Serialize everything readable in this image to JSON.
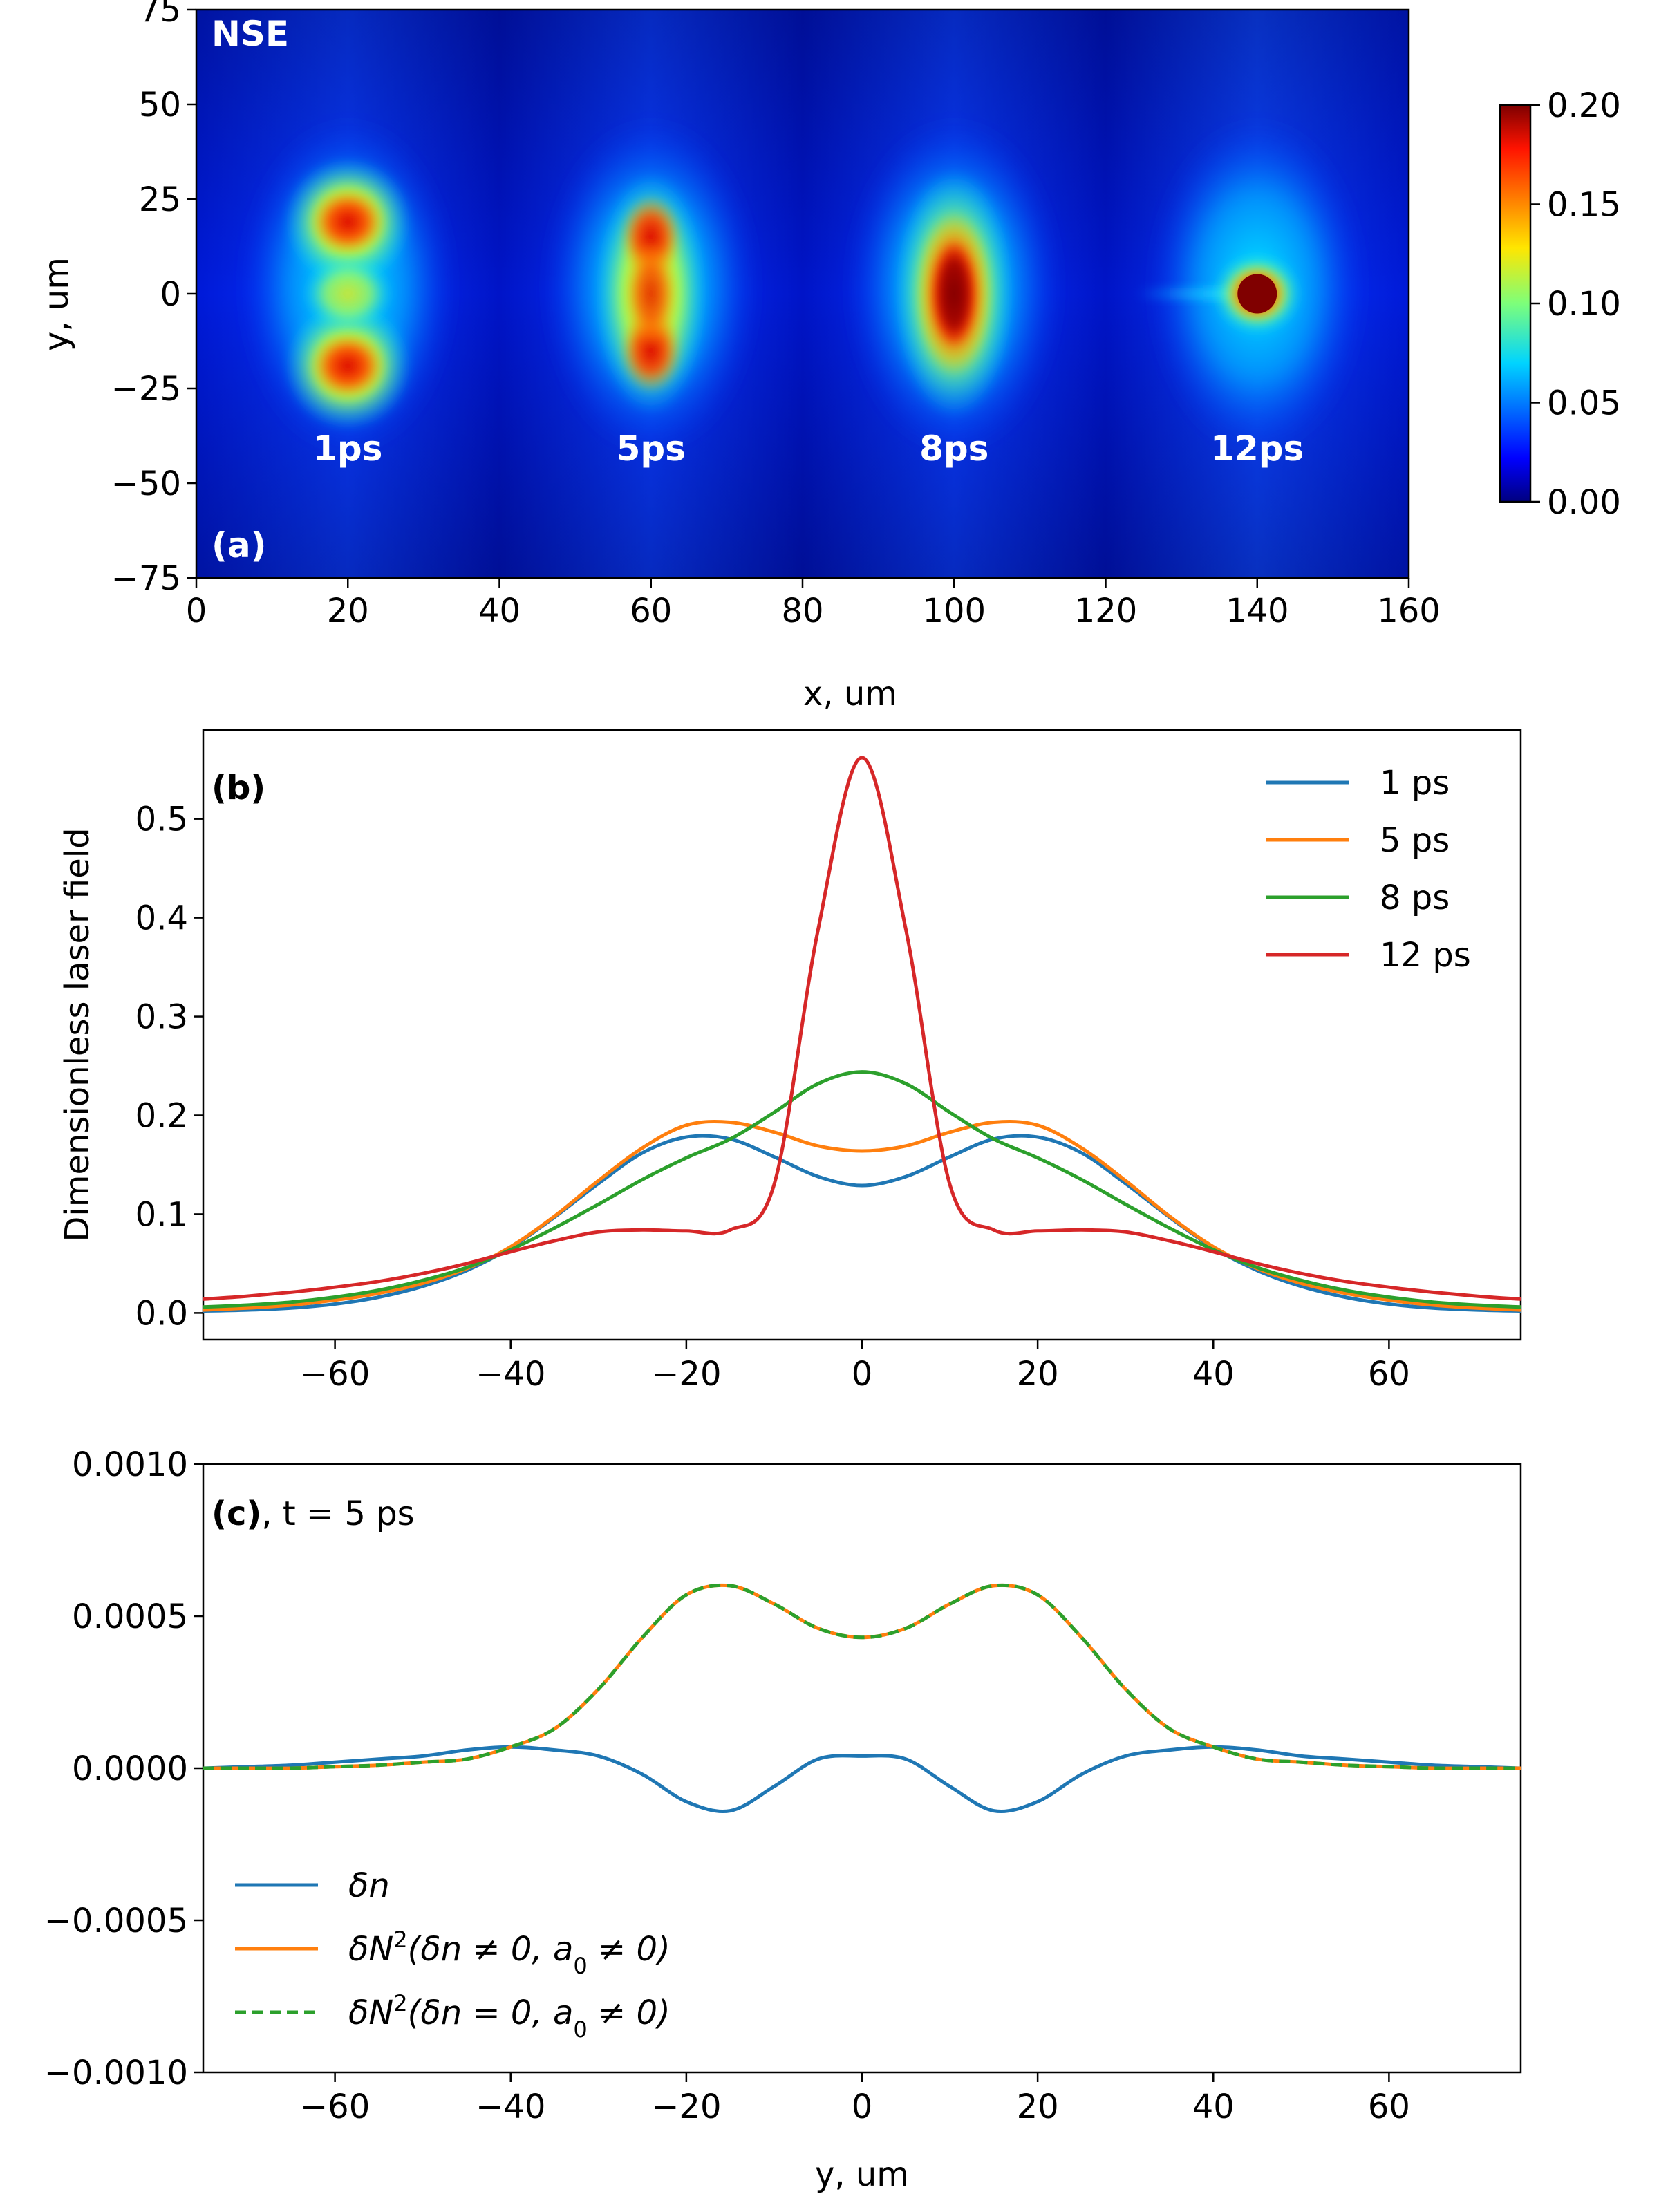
{
  "chart_data": [
    {
      "id": "a",
      "type": "heatmap",
      "panel_label": "(a)",
      "corner_label": "NSE",
      "xlabel": "x, um",
      "ylabel": "y, um",
      "xlim": [
        0,
        160
      ],
      "ylim": [
        -75,
        75
      ],
      "xticks": [
        0,
        20,
        40,
        60,
        80,
        100,
        120,
        140,
        160
      ],
      "yticks": [
        -75,
        -50,
        -25,
        0,
        25,
        50,
        75
      ],
      "colormap": "jet",
      "colorbar": {
        "range": [
          0.0,
          0.2
        ],
        "ticks": [
          0.0,
          0.05,
          0.1,
          0.15,
          0.2
        ],
        "tick_labels": [
          "0.00",
          "0.05",
          "0.10",
          "0.15",
          "0.20"
        ]
      },
      "pulses": [
        {
          "label": "1ps",
          "x_center": 20,
          "note": "double-lobed, lobes near y = ±19 um",
          "peak": 0.18
        },
        {
          "label": "5ps",
          "x_center": 60,
          "note": "elongated, lobes near y = ±15 um",
          "peak": 0.19
        },
        {
          "label": "8ps",
          "x_center": 100,
          "note": "single central maximum",
          "peak": 0.24
        },
        {
          "label": "12ps",
          "x_center": 140,
          "note": "compressed hot spot at y = 0 with faint tail toward smaller x",
          "peak": 0.56
        }
      ]
    },
    {
      "id": "b",
      "type": "line",
      "panel_label": "(b)",
      "xlabel": "",
      "ylabel": "Dimensionless laser field",
      "xlim": [
        -75,
        75
      ],
      "ylim": [
        -0.027,
        0.59
      ],
      "xticks": [
        -60,
        -40,
        -20,
        0,
        20,
        40,
        60
      ],
      "yticks": [
        0.0,
        0.1,
        0.2,
        0.3,
        0.4,
        0.5
      ],
      "ytick_labels": [
        "0.0",
        "0.1",
        "0.2",
        "0.3",
        "0.4",
        "0.5"
      ],
      "legend_position": "top-right",
      "x": [
        0,
        5,
        10,
        15,
        20,
        25,
        30,
        35,
        40,
        45,
        50,
        55,
        60,
        65,
        70,
        75
      ],
      "series": [
        {
          "name": "1 ps",
          "color": "#1f77b4",
          "values": [
            0.129,
            0.138,
            0.158,
            0.176,
            0.178,
            0.162,
            0.131,
            0.097,
            0.066,
            0.043,
            0.027,
            0.016,
            0.009,
            0.005,
            0.003,
            0.002
          ]
        },
        {
          "name": "5 ps",
          "color": "#ff7f0e",
          "values": [
            0.164,
            0.169,
            0.183,
            0.193,
            0.19,
            0.167,
            0.134,
            0.098,
            0.067,
            0.045,
            0.03,
            0.02,
            0.013,
            0.008,
            0.005,
            0.003
          ]
        },
        {
          "name": "8 ps",
          "color": "#2ca02c",
          "values": [
            0.244,
            0.232,
            0.203,
            0.176,
            0.157,
            0.135,
            0.11,
            0.086,
            0.064,
            0.046,
            0.033,
            0.023,
            0.016,
            0.011,
            0.008,
            0.006
          ]
        },
        {
          "name": "12 ps",
          "color": "#d62728",
          "values": [
            0.562,
            0.388,
            0.13,
            0.084,
            0.083,
            0.084,
            0.082,
            0.073,
            0.062,
            0.05,
            0.04,
            0.032,
            0.026,
            0.021,
            0.017,
            0.014
          ]
        }
      ]
    },
    {
      "id": "c",
      "type": "line",
      "panel_label": "(c)",
      "panel_suffix": ", t = 5 ps",
      "xlabel": "y, um",
      "ylabel": "",
      "xlim": [
        -75,
        75
      ],
      "ylim": [
        -0.001,
        0.001
      ],
      "xticks": [
        -60,
        -40,
        -20,
        0,
        20,
        40,
        60
      ],
      "yticks": [
        -0.001,
        -0.0005,
        0.0,
        0.0005,
        0.001
      ],
      "ytick_labels": [
        "−0.0010",
        "−0.0005",
        "0.0000",
        "0.0005",
        "0.0010"
      ],
      "legend_position": "bottom-left",
      "x": [
        0,
        5,
        10,
        15,
        20,
        25,
        30,
        35,
        40,
        45,
        50,
        55,
        60,
        65,
        70,
        75
      ],
      "series": [
        {
          "name": "δn",
          "legend": [
            "δn"
          ],
          "color": "#1f77b4",
          "dashed": false,
          "values": [
            4e-05,
            3e-05,
            -6e-05,
            -0.00014,
            -0.00011,
            -2e-05,
            4e-05,
            6e-05,
            7e-05,
            6e-05,
            4e-05,
            3e-05,
            2e-05,
            1e-05,
            5e-06,
            0.0
          ]
        },
        {
          "name": "δN²(δn ≠ 0, a₀ ≠ 0)",
          "legend": [
            "δN",
            "2",
            "(δn ≠ 0, a",
            "0",
            " ≠ 0)"
          ],
          "color": "#ff7f0e",
          "dashed": false,
          "values": [
            0.00043,
            0.00046,
            0.00054,
            0.0006,
            0.00057,
            0.00043,
            0.00026,
            0.00013,
            7e-05,
            3e-05,
            2e-05,
            1e-05,
            5e-06,
            0.0,
            0.0,
            0.0
          ]
        },
        {
          "name": "δN²(δn = 0, a₀ ≠ 0)",
          "legend": [
            "δN",
            "2",
            "(δn = 0, a",
            "0",
            " ≠ 0)"
          ],
          "color": "#2ca02c",
          "dashed": true,
          "values": [
            0.00043,
            0.00046,
            0.00054,
            0.0006,
            0.00057,
            0.00043,
            0.00026,
            0.00013,
            7e-05,
            3e-05,
            2e-05,
            1e-05,
            5e-06,
            0.0,
            0.0,
            0.0
          ]
        }
      ]
    }
  ]
}
